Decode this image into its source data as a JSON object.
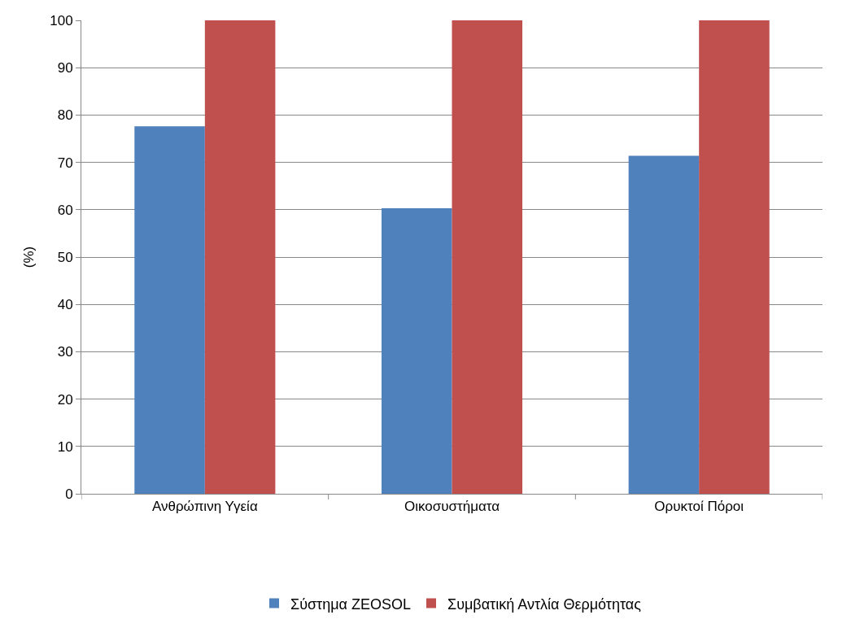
{
  "chart_data": {
    "type": "bar",
    "ylabel": "(%)",
    "categories": [
      "Ανθρώπινη Υγεία",
      "Οικοσυστήματα",
      "Ορυκτοί Πόροι"
    ],
    "series": [
      {
        "name": "Σύστημα ZEOSOL",
        "color": "#4f81bd",
        "values": [
          77.6,
          60.3,
          71.4
        ]
      },
      {
        "name": "Συμβατική Αντλία Θερμότητας",
        "color": "#c0504d",
        "values": [
          100,
          100,
          100
        ]
      }
    ],
    "ylim": [
      0,
      100
    ],
    "yticks": [
      0,
      10,
      20,
      30,
      40,
      50,
      60,
      70,
      80,
      90,
      100
    ],
    "grid": "y",
    "legend": "bottom"
  }
}
